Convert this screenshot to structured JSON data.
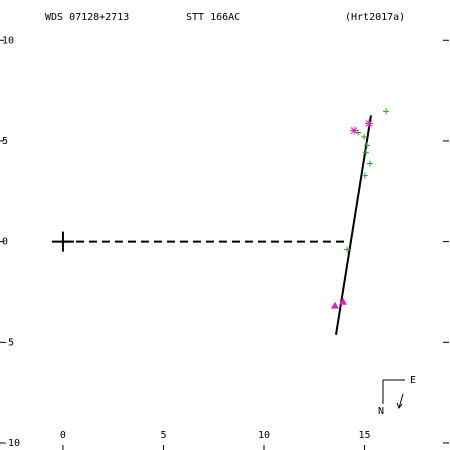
{
  "chart_data": {
    "type": "scatter",
    "header": [
      "WDS 07128+2713",
      "STT 166AC",
      "(Hrt2017a)"
    ],
    "xlim": [
      -3.13,
      19.25
    ],
    "ylim": [
      -10.35,
      12.0
    ],
    "xticks": [
      0,
      5,
      10,
      15
    ],
    "yticks": [
      10,
      5,
      0,
      -5,
      -10
    ],
    "series": [
      {
        "marker": "plus",
        "color": "#2ca02c",
        "x": [
          15.02,
          15.27,
          15.07,
          15.12,
          14.98,
          16.07,
          14.68,
          14.13
        ],
        "y": [
          3.28,
          3.88,
          4.43,
          4.78,
          5.2,
          6.47,
          5.42,
          -0.4
        ]
      },
      {
        "marker": "asterisk",
        "color": "#e020c0",
        "x": [
          14.48,
          15.22
        ],
        "y": [
          5.52,
          5.87
        ]
      },
      {
        "marker": "triangle",
        "color": "#e020c0",
        "x": [
          13.53,
          13.93
        ],
        "y": [
          -3.18,
          -2.99
        ]
      },
      {
        "marker": "big-plus",
        "color": "#000000",
        "x": [
          0
        ],
        "y": [
          0
        ]
      }
    ],
    "lines": [
      {
        "color": "#000000",
        "dash": false,
        "x": [
          13.58,
          15.32
        ],
        "y": [
          -4.63,
          6.27
        ]
      },
      {
        "color": "#000000",
        "dash": true,
        "x": [
          0,
          14.23
        ],
        "y": [
          0,
          0
        ]
      }
    ],
    "compass": {
      "east": "E",
      "north": "N"
    }
  }
}
